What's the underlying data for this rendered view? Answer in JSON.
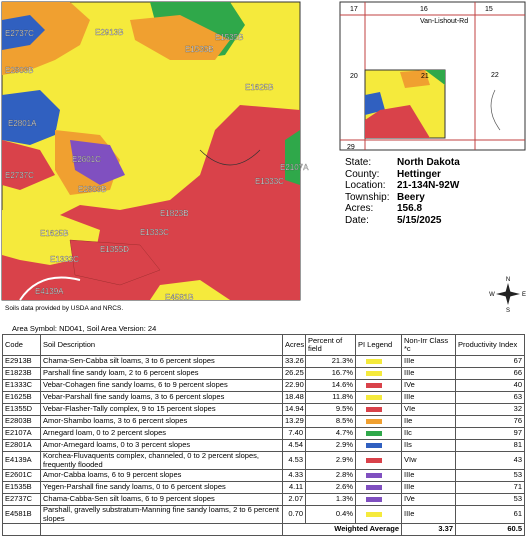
{
  "map": {
    "labels": [
      "E2737C",
      "E1535B",
      "E2913B",
      "E1535B",
      "E2803B",
      "E1625B",
      "E2801A",
      "E2601C",
      "E2737C",
      "E2107A",
      "E2803B",
      "E1333C",
      "E1823B",
      "E1625B",
      "E1333C",
      "E1333C",
      "E1355D",
      "E4139A",
      "E4581B"
    ],
    "note": "Soils data provided by USDA and NRCS."
  },
  "location_map": {
    "labels": [
      "17",
      "16",
      "15",
      "Van-Lishout-Rd",
      "20",
      "21",
      "22",
      "29"
    ]
  },
  "info": [
    {
      "label": "State:",
      "value": "North Dakota"
    },
    {
      "label": "County:",
      "value": "Hettinger"
    },
    {
      "label": "Location:",
      "value": "21-134N-92W"
    },
    {
      "label": "Township:",
      "value": "Beery"
    },
    {
      "label": "Acres:",
      "value": "156.8"
    },
    {
      "label": "Date:",
      "value": "5/15/2025"
    }
  ],
  "compass": {
    "n": "N",
    "s": "S",
    "e": "E",
    "w": "W"
  },
  "table": {
    "area": "Area Symbol: ND041, Soil Area Version: 24",
    "headers": [
      "Code",
      "Soil Description",
      "Acres",
      "Percent of field",
      "PI Legend",
      "Non-Irr Class *c",
      "Productivity Index"
    ],
    "rows": [
      {
        "code": "E2913B",
        "desc": "Chama-Sen-Cabba silt loams, 3 to 6 percent slopes",
        "acres": "33.26",
        "pct": "21.3%",
        "legend": "#f5ea3c",
        "cls": "IIIe",
        "pi": "67"
      },
      {
        "code": "E1823B",
        "desc": "Parshall fine sandy loam, 2 to 6 percent slopes",
        "acres": "26.25",
        "pct": "16.7%",
        "legend": "#f5ea3c",
        "cls": "IIIe",
        "pi": "66"
      },
      {
        "code": "E1333C",
        "desc": "Vebar-Cohagen fine sandy loams, 6 to 9 percent slopes",
        "acres": "22.90",
        "pct": "14.6%",
        "legend": "#d9424a",
        "cls": "IVe",
        "pi": "40"
      },
      {
        "code": "E1625B",
        "desc": "Vebar-Parshall fine sandy loams, 3 to 6 percent slopes",
        "acres": "18.48",
        "pct": "11.8%",
        "legend": "#f5ea3c",
        "cls": "IIIe",
        "pi": "63"
      },
      {
        "code": "E1355D",
        "desc": "Vebar-Flasher-Tally complex, 9 to 15 percent slopes",
        "acres": "14.94",
        "pct": "9.5%",
        "legend": "#d9424a",
        "cls": "VIe",
        "pi": "32"
      },
      {
        "code": "E2803B",
        "desc": "Amor-Shambo loams, 3 to 6 percent slopes",
        "acres": "13.29",
        "pct": "8.5%",
        "legend": "#f0a030",
        "cls": "IIe",
        "pi": "76"
      },
      {
        "code": "E2107A",
        "desc": "Arnegard loam, 0 to 2 percent slopes",
        "acres": "7.40",
        "pct": "4.7%",
        "legend": "#2fa84a",
        "cls": "IIc",
        "pi": "97"
      },
      {
        "code": "E2801A",
        "desc": "Amor-Arnegard loams, 0 to 3 percent slopes",
        "acres": "4.54",
        "pct": "2.9%",
        "legend": "#3060c0",
        "cls": "IIs",
        "pi": "81"
      },
      {
        "code": "E4139A",
        "desc": "Korchea-Fluvaquents complex, channeled, 0 to 2 percent slopes, frequently flooded",
        "acres": "4.53",
        "pct": "2.9%",
        "legend": "#d9424a",
        "cls": "VIw",
        "pi": "43"
      },
      {
        "code": "E2601C",
        "desc": "Amor-Cabba loams, 6 to 9 percent slopes",
        "acres": "4.33",
        "pct": "2.8%",
        "legend": "#8050c0",
        "cls": "IIIe",
        "pi": "53"
      },
      {
        "code": "E1535B",
        "desc": "Yegen-Parshall fine sandy loams, 0 to 6 percent slopes",
        "acres": "4.11",
        "pct": "2.6%",
        "legend": "#8050c0",
        "cls": "IIIe",
        "pi": "71"
      },
      {
        "code": "E2737C",
        "desc": "Chama-Cabba-Sen silt loams, 6 to 9 percent slopes",
        "acres": "2.07",
        "pct": "1.3%",
        "legend": "#8050c0",
        "cls": "IVe",
        "pi": "53"
      },
      {
        "code": "E4581B",
        "desc": "Parshall, gravelly substratum-Manning fine sandy loams, 2 to 6 percent slopes",
        "acres": "0.70",
        "pct": "0.4%",
        "legend": "#f5ea3c",
        "cls": "IIIe",
        "pi": "61"
      }
    ],
    "footer": {
      "label": "Weighted Average",
      "cls": "3.37",
      "pi": "60.5"
    }
  }
}
